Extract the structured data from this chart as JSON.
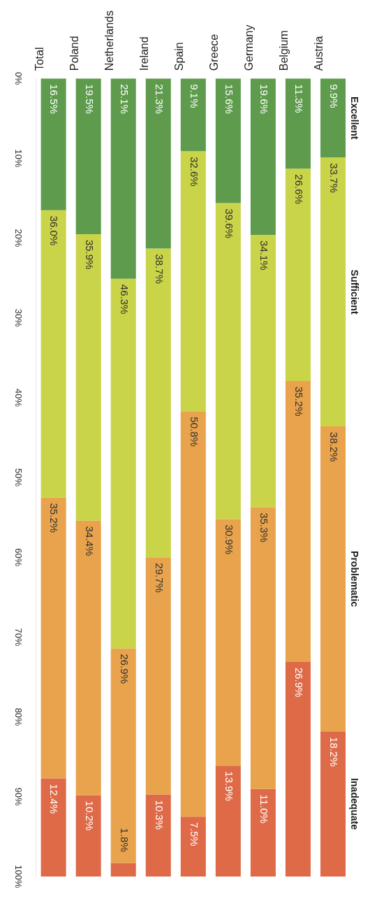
{
  "chart_data": {
    "type": "bar",
    "stacked": true,
    "categories": [
      "Total",
      "Poland",
      "Netherlands",
      "Ireland",
      "Spain",
      "Greece",
      "Germany",
      "Belgium",
      "Austria"
    ],
    "series": [
      {
        "name": "Excellent",
        "color": "#5e9b4c",
        "values": [
          16.5,
          19.5,
          25.1,
          21.3,
          9.1,
          15.6,
          19.6,
          11.3,
          9.9
        ],
        "value_labels": [
          "16.5%",
          "19.5%",
          "25.1%",
          "21.3%",
          "9.1%",
          "15.6%",
          "19.6%",
          "11.3%",
          "9.9%"
        ]
      },
      {
        "name": "Sufficient",
        "color": "#c9d448",
        "values": [
          36.0,
          35.9,
          46.3,
          38.7,
          32.6,
          39.6,
          34.1,
          26.6,
          33.7
        ],
        "value_labels": [
          "36.0%",
          "35.9%",
          "46.3%",
          "38.7%",
          "32.6%",
          "39.6%",
          "34.1%",
          "26.6%",
          "33.7%"
        ]
      },
      {
        "name": "Problematic",
        "color": "#e9a34c",
        "values": [
          35.2,
          34.4,
          26.9,
          29.7,
          50.8,
          30.9,
          35.3,
          35.2,
          38.2
        ],
        "value_labels": [
          "35.2%",
          "34.4%",
          "26.9%",
          "29.7%",
          "50.8%",
          "30.9%",
          "35.3%",
          "35.2%",
          "38.2%"
        ]
      },
      {
        "name": "Inadequate",
        "color": "#de6a48",
        "values": [
          12.4,
          10.2,
          1.8,
          10.3,
          7.5,
          13.9,
          11.0,
          26.9,
          18.2
        ],
        "value_labels": [
          "12.4%",
          "10.2%",
          "1.8%",
          "10.3%",
          "7.5%",
          "13.9%",
          "11.0%",
          "26.9%",
          "18.2%"
        ]
      }
    ],
    "ylim": [
      100,
      0
    ],
    "yticks": [
      {
        "value": 0,
        "label": "0%"
      },
      {
        "value": 10,
        "label": "10%"
      },
      {
        "value": 20,
        "label": "20%"
      },
      {
        "value": 30,
        "label": "30%"
      },
      {
        "value": 40,
        "label": "40%"
      },
      {
        "value": 50,
        "label": "50%"
      },
      {
        "value": 60,
        "label": "60%"
      },
      {
        "value": 70,
        "label": "70%"
      },
      {
        "value": 80,
        "label": "80%"
      },
      {
        "value": 90,
        "label": "90%"
      },
      {
        "value": 100,
        "label": "100%"
      }
    ],
    "grid": false,
    "legend": false
  }
}
